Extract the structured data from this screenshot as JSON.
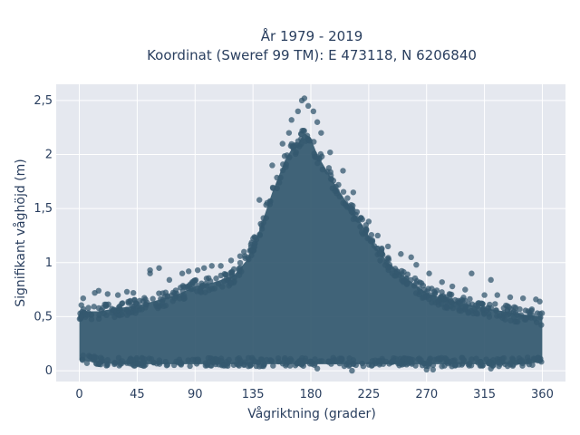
{
  "chart_data": {
    "type": "scatter",
    "title_line1": "År 1979 - 2019",
    "title_line2": "Koordinat (Sweref 99 TM): E 473118, N 6206840",
    "xlabel": "Vågriktning (grader)",
    "ylabel": "Signifikant våghöjd (m)",
    "xlim": [
      -18,
      378
    ],
    "ylim": [
      -0.1,
      2.65
    ],
    "xticks": [
      0,
      45,
      90,
      135,
      180,
      225,
      270,
      315,
      360
    ],
    "xtick_labels": [
      "0",
      "45",
      "90",
      "135",
      "180",
      "225",
      "270",
      "315",
      "360"
    ],
    "yticks": [
      0,
      0.5,
      1,
      1.5,
      2,
      2.5
    ],
    "ytick_labels": [
      "0",
      "0,5",
      "1",
      "1,5",
      "2",
      "2,5"
    ],
    "grid": true,
    "marker_color": "#34586f",
    "plot_bg": "#e5e8ef",
    "envelope": {
      "direction": [
        0,
        15,
        30,
        45,
        60,
        75,
        90,
        105,
        120,
        130,
        140,
        150,
        160,
        165,
        170,
        175,
        180,
        185,
        190,
        200,
        210,
        220,
        230,
        240,
        255,
        270,
        285,
        300,
        315,
        330,
        345,
        360
      ],
      "min_height": [
        0.1,
        0.07,
        0.06,
        0.06,
        0.06,
        0.06,
        0.06,
        0.06,
        0.06,
        0.06,
        0.06,
        0.06,
        0.06,
        0.06,
        0.06,
        0.06,
        0.06,
        0.06,
        0.06,
        0.06,
        0.06,
        0.06,
        0.06,
        0.06,
        0.06,
        0.06,
        0.06,
        0.06,
        0.06,
        0.06,
        0.06,
        0.08
      ],
      "dense_max_height": [
        0.55,
        0.55,
        0.58,
        0.6,
        0.65,
        0.7,
        0.78,
        0.82,
        0.88,
        1.02,
        1.3,
        1.65,
        1.95,
        2.05,
        2.1,
        2.2,
        2.15,
        2.0,
        1.9,
        1.7,
        1.52,
        1.35,
        1.15,
        1.0,
        0.85,
        0.72,
        0.66,
        0.62,
        0.58,
        0.55,
        0.52,
        0.5
      ]
    },
    "outliers": [
      {
        "x": 3,
        "y": 0.67
      },
      {
        "x": 12,
        "y": 0.72
      },
      {
        "x": 15,
        "y": 0.74
      },
      {
        "x": 22,
        "y": 0.71
      },
      {
        "x": 30,
        "y": 0.7
      },
      {
        "x": 37,
        "y": 0.73
      },
      {
        "x": 42,
        "y": 0.72
      },
      {
        "x": 55,
        "y": 0.93
      },
      {
        "x": 55,
        "y": 0.9
      },
      {
        "x": 62,
        "y": 0.95
      },
      {
        "x": 70,
        "y": 0.84
      },
      {
        "x": 80,
        "y": 0.9
      },
      {
        "x": 85,
        "y": 0.92
      },
      {
        "x": 92,
        "y": 0.93
      },
      {
        "x": 97,
        "y": 0.95
      },
      {
        "x": 103,
        "y": 0.97
      },
      {
        "x": 110,
        "y": 0.97
      },
      {
        "x": 118,
        "y": 1.02
      },
      {
        "x": 125,
        "y": 1.06
      },
      {
        "x": 128,
        "y": 1.1
      },
      {
        "x": 140,
        "y": 1.58
      },
      {
        "x": 150,
        "y": 1.9
      },
      {
        "x": 158,
        "y": 2.1
      },
      {
        "x": 163,
        "y": 2.2
      },
      {
        "x": 165,
        "y": 2.32
      },
      {
        "x": 170,
        "y": 2.4
      },
      {
        "x": 173,
        "y": 2.5
      },
      {
        "x": 175,
        "y": 2.52
      },
      {
        "x": 178,
        "y": 2.45
      },
      {
        "x": 182,
        "y": 2.4
      },
      {
        "x": 185,
        "y": 2.3
      },
      {
        "x": 188,
        "y": 2.2
      },
      {
        "x": 195,
        "y": 2.02
      },
      {
        "x": 205,
        "y": 1.85
      },
      {
        "x": 213,
        "y": 1.65
      },
      {
        "x": 225,
        "y": 1.38
      },
      {
        "x": 232,
        "y": 1.25
      },
      {
        "x": 240,
        "y": 1.15
      },
      {
        "x": 250,
        "y": 1.08
      },
      {
        "x": 258,
        "y": 1.05
      },
      {
        "x": 262,
        "y": 0.98
      },
      {
        "x": 272,
        "y": 0.9
      },
      {
        "x": 282,
        "y": 0.82
      },
      {
        "x": 290,
        "y": 0.78
      },
      {
        "x": 300,
        "y": 0.75
      },
      {
        "x": 305,
        "y": 0.9
      },
      {
        "x": 315,
        "y": 0.7
      },
      {
        "x": 320,
        "y": 0.84
      },
      {
        "x": 325,
        "y": 0.7
      },
      {
        "x": 335,
        "y": 0.68
      },
      {
        "x": 345,
        "y": 0.67
      },
      {
        "x": 355,
        "y": 0.66
      },
      {
        "x": 358,
        "y": 0.64
      },
      {
        "x": 212,
        "y": 0.0
      },
      {
        "x": 270,
        "y": 0.01
      },
      {
        "x": 275,
        "y": 0.01
      },
      {
        "x": 185,
        "y": 0.02
      },
      {
        "x": 320,
        "y": 0.02
      }
    ]
  }
}
